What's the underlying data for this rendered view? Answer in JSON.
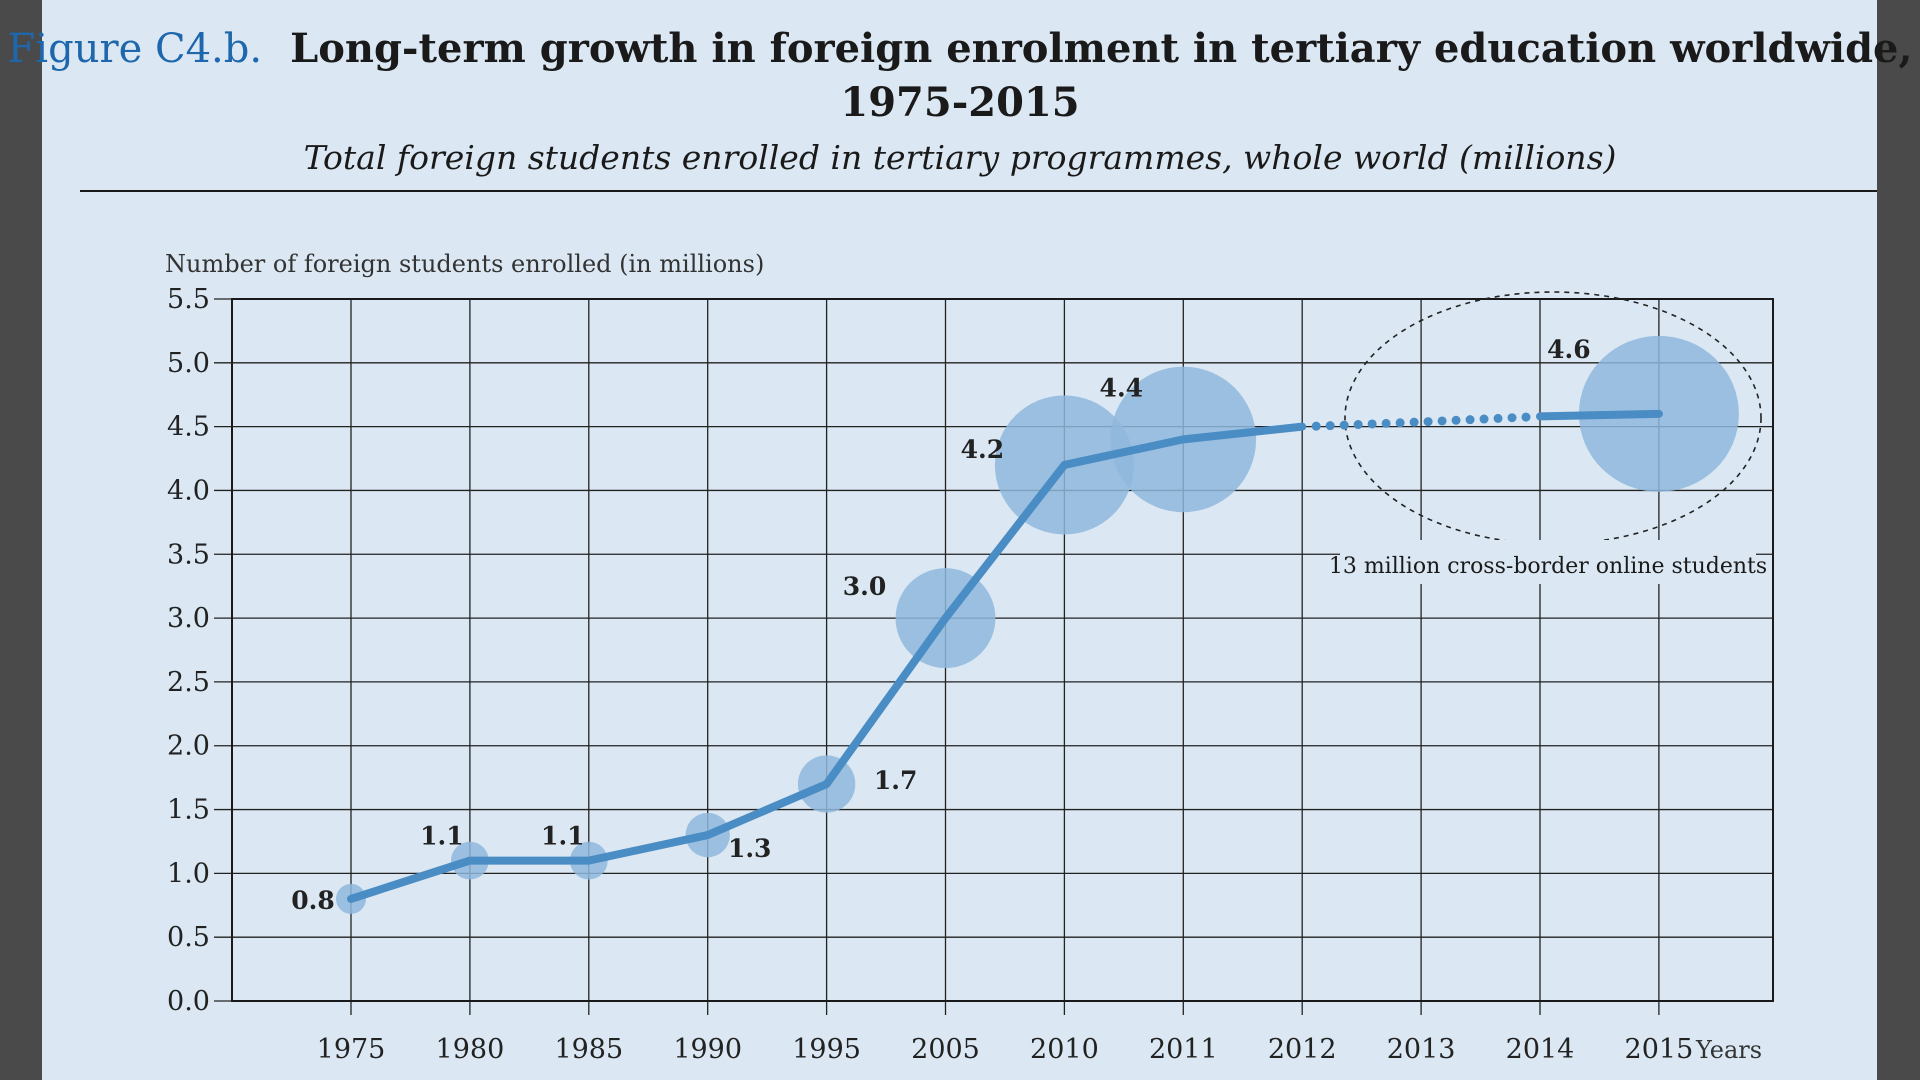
{
  "figure": {
    "label": "Figure C4.b.",
    "title_line1": "Long-term growth in foreign enrolment in tertiary education worldwide,",
    "title_line2": "1975-2015",
    "subtitle": "Total foreign students enrolled in tertiary programmes, whole world (millions)"
  },
  "colors": {
    "panel_bg": "#dbe8f3",
    "line": "#4a8cc4",
    "bubble": "#8fb7dc",
    "label_blue": "#1f67ac"
  },
  "chart_data": {
    "type": "line",
    "title": "Long-term growth in foreign enrolment in tertiary education worldwide, 1975-2015",
    "subtitle": "Total foreign students enrolled in tertiary programmes, whole world (millions)",
    "ylabel": "Number of foreign students enrolled (in millions)",
    "xlabel": "Years",
    "ylim": [
      0,
      5.5
    ],
    "yticks": [
      "0.0",
      "0.5",
      "1.0",
      "1.5",
      "2.0",
      "2.5",
      "3.0",
      "3.5",
      "4.0",
      "4.5",
      "5.0",
      "5.5"
    ],
    "categories": [
      "1975",
      "1980",
      "1985",
      "1990",
      "1995",
      "2005",
      "2010",
      "2011",
      "2012",
      "2013",
      "2014",
      "2015"
    ],
    "grid": true,
    "series": [
      {
        "values": [
          0.8,
          1.1,
          1.1,
          1.3,
          1.7,
          3.0,
          4.2,
          4.4,
          4.5,
          4.53,
          4.58,
          4.6
        ],
        "labels": [
          "0.8",
          "1.1",
          "1.1",
          "1.3",
          "1.7",
          "3.0",
          "4.2",
          "4.4",
          "",
          "",
          "",
          "4.6"
        ],
        "style_note": "solid 1975-2012, dotted 2012-2014 (projection), solid 2014-2015"
      }
    ],
    "annotation": "13 million cross-border online students"
  }
}
